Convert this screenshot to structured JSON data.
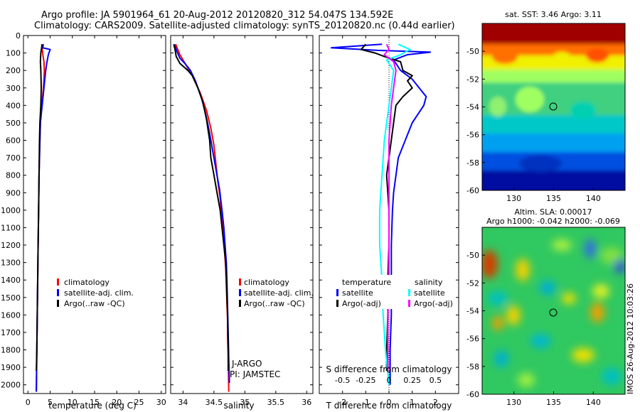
{
  "header": {
    "line1": "Argo profile: JA 5901964_61 20-Aug-2012 20120820_312 54.047S 134.592E",
    "line2": "Climatology: CARS2009. Satellite-adjusted climatology: synTS_20120820.nc (0.44d earlier)"
  },
  "timestamp": "IMOS 26-Aug-2012 10:03:26",
  "colors": {
    "climatology": "#ff0000",
    "satellite": "#0000ff",
    "argo": "#000000",
    "cyan": "#00ffff",
    "magenta": "#ff00ff"
  },
  "chart_data": [
    {
      "type": "line",
      "id": "temperature",
      "xlabel": "temperature (deg C)",
      "xlim": [
        -1,
        31
      ],
      "xticks": [
        0,
        5,
        10,
        15,
        20,
        25,
        30
      ],
      "ylim": [
        2050,
        0
      ],
      "yticks": [
        0,
        100,
        200,
        300,
        400,
        500,
        600,
        700,
        800,
        900,
        1000,
        1100,
        1200,
        1300,
        1400,
        1500,
        1600,
        1700,
        1800,
        1900,
        2000
      ],
      "legend": [
        "climatology",
        "satellite-adj. clim.",
        "Argo(..raw -QC)"
      ],
      "series": [
        {
          "name": "climatology",
          "color": "#ff0000",
          "points": [
            [
              3.1,
              50
            ],
            [
              3.3,
              100
            ],
            [
              3.6,
              150
            ],
            [
              3.7,
              200
            ],
            [
              3.5,
              300
            ],
            [
              3.1,
              400
            ],
            [
              2.8,
              500
            ],
            [
              2.7,
              600
            ],
            [
              2.5,
              800
            ],
            [
              2.4,
              1000
            ],
            [
              2.3,
              1200
            ],
            [
              2.2,
              1400
            ],
            [
              2.1,
              1600
            ],
            [
              2.0,
              1800
            ],
            [
              1.9,
              2040
            ]
          ]
        },
        {
          "name": "satellite-adj. clim.",
          "color": "#0000ff",
          "points": [
            [
              3.5,
              50
            ],
            [
              3.3,
              70
            ],
            [
              5.0,
              80
            ],
            [
              4.6,
              110
            ],
            [
              4.3,
              150
            ],
            [
              4.0,
              200
            ],
            [
              3.6,
              300
            ],
            [
              3.2,
              400
            ],
            [
              2.8,
              500
            ],
            [
              2.7,
              600
            ],
            [
              2.5,
              800
            ],
            [
              2.4,
              1000
            ],
            [
              2.3,
              1200
            ],
            [
              2.2,
              1400
            ],
            [
              2.1,
              1600
            ],
            [
              2.0,
              1800
            ],
            [
              1.9,
              2040
            ]
          ]
        },
        {
          "name": "Argo(..raw -QC)",
          "color": "#000000",
          "points": [
            [
              3.2,
              50
            ],
            [
              2.9,
              100
            ],
            [
              2.8,
              150
            ],
            [
              2.9,
              200
            ],
            [
              3.0,
              300
            ],
            [
              2.9,
              400
            ],
            [
              2.7,
              500
            ],
            [
              2.6,
              600
            ],
            [
              2.5,
              800
            ],
            [
              2.4,
              1000
            ],
            [
              2.3,
              1200
            ],
            [
              2.2,
              1400
            ],
            [
              2.1,
              1600
            ],
            [
              2.0,
              1800
            ],
            [
              1.9,
              1920
            ]
          ]
        }
      ]
    },
    {
      "type": "line",
      "id": "salinity",
      "xlabel": "salinity",
      "xlim": [
        33.8,
        36.1
      ],
      "xticks": [
        34,
        34.5,
        35,
        35.5,
        36
      ],
      "ylim": [
        2050,
        0
      ],
      "legend": [
        "climatology",
        "satellite-adj. clim.",
        "Argo(..raw -QC)"
      ],
      "annotations": [
        "J-ARGO",
        "PI: JAMSTEC"
      ],
      "series": [
        {
          "name": "climatology",
          "color": "#ff0000",
          "points": [
            [
              33.88,
              50
            ],
            [
              33.95,
              110
            ],
            [
              34.05,
              170
            ],
            [
              34.15,
              230
            ],
            [
              34.28,
              330
            ],
            [
              34.38,
              430
            ],
            [
              34.45,
              530
            ],
            [
              34.5,
              630
            ],
            [
              34.53,
              730
            ],
            [
              34.56,
              830
            ],
            [
              34.6,
              930
            ],
            [
              34.62,
              1030
            ],
            [
              34.65,
              1130
            ],
            [
              34.67,
              1230
            ],
            [
              34.69,
              1330
            ],
            [
              34.7,
              1430
            ],
            [
              34.71,
              1530
            ],
            [
              34.72,
              1630
            ],
            [
              34.72,
              1730
            ],
            [
              34.73,
              1830
            ],
            [
              34.74,
              2040
            ]
          ]
        },
        {
          "name": "satellite-adj. clim.",
          "color": "#0000ff",
          "points": [
            [
              33.86,
              50
            ],
            [
              33.9,
              90
            ],
            [
              33.95,
              130
            ],
            [
              34.03,
              160
            ],
            [
              34.12,
              200
            ],
            [
              34.2,
              260
            ],
            [
              34.3,
              360
            ],
            [
              34.36,
              440
            ],
            [
              34.42,
              540
            ],
            [
              34.48,
              660
            ],
            [
              34.54,
              780
            ],
            [
              34.59,
              880
            ],
            [
              34.63,
              1000
            ],
            [
              34.66,
              1100
            ],
            [
              34.68,
              1200
            ],
            [
              34.7,
              1300
            ],
            [
              34.71,
              1400
            ],
            [
              34.72,
              1550
            ],
            [
              34.73,
              1700
            ],
            [
              34.74,
              1850
            ],
            [
              34.75,
              1990
            ]
          ]
        },
        {
          "name": "Argo(..raw -QC)",
          "color": "#000000",
          "points": [
            [
              33.85,
              50
            ],
            [
              33.87,
              80
            ],
            [
              33.89,
              120
            ],
            [
              33.95,
              160
            ],
            [
              34.08,
              200
            ],
            [
              34.15,
              230
            ],
            [
              34.24,
              300
            ],
            [
              34.32,
              380
            ],
            [
              34.38,
              480
            ],
            [
              34.43,
              600
            ],
            [
              34.45,
              700
            ],
            [
              34.5,
              800
            ],
            [
              34.55,
              900
            ],
            [
              34.6,
              1000
            ],
            [
              34.63,
              1100
            ],
            [
              34.66,
              1200
            ],
            [
              34.69,
              1300
            ],
            [
              34.7,
              1400
            ],
            [
              34.71,
              1500
            ],
            [
              34.72,
              1600
            ],
            [
              34.73,
              1750
            ],
            [
              34.73,
              1920
            ]
          ]
        }
      ]
    },
    {
      "type": "line",
      "id": "difference",
      "xlabel": "T difference from climatology",
      "xlabel2": "S difference from climatology",
      "xlim": [
        -3,
        3
      ],
      "xticks": [
        -2,
        -1,
        0,
        1,
        2
      ],
      "xticklabels": [
        "-2",
        "-1",
        "0",
        "1",
        "2"
      ],
      "xticks2": [
        -2,
        -1,
        0,
        1,
        2
      ],
      "xticklabels2": [
        "-0.5",
        "-0.25",
        "0",
        "0.25",
        "0.5"
      ],
      "ylim": [
        2050,
        0
      ],
      "legend": {
        "temperature_heading": "temperature",
        "salinity_heading": "salinity",
        "items": [
          "satellite",
          "Argo(-adj)",
          "satellite",
          "Argo(-adj)"
        ]
      },
      "series": [
        {
          "name": "T satellite",
          "color": "#0000ff",
          "points": [
            [
              -0.3,
              50
            ],
            [
              -2.5,
              70
            ],
            [
              -0.5,
              85
            ],
            [
              1.8,
              95
            ],
            [
              0.8,
              110
            ],
            [
              0.2,
              140
            ],
            [
              0.5,
              200
            ],
            [
              1.0,
              250
            ],
            [
              1.6,
              350
            ],
            [
              1.5,
              400
            ],
            [
              1.0,
              500
            ],
            [
              0.7,
              600
            ],
            [
              0.4,
              700
            ],
            [
              0.3,
              800
            ],
            [
              0.2,
              900
            ],
            [
              0.15,
              1000
            ],
            [
              0.1,
              1200
            ],
            [
              0.1,
              1400
            ],
            [
              0.1,
              1600
            ],
            [
              0.05,
              1800
            ],
            [
              0.05,
              2000
            ]
          ]
        },
        {
          "name": "T Argo(-adj)",
          "color": "#000000",
          "points": [
            [
              -1.0,
              50
            ],
            [
              -1.2,
              80
            ],
            [
              -0.6,
              100
            ],
            [
              -0.2,
              120
            ],
            [
              0.5,
              150
            ],
            [
              0.6,
              200
            ],
            [
              1.0,
              230
            ],
            [
              0.8,
              260
            ],
            [
              1.0,
              300
            ],
            [
              0.6,
              350
            ],
            [
              0.3,
              400
            ],
            [
              0.2,
              500
            ],
            [
              0.0,
              700
            ],
            [
              -0.1,
              800
            ],
            [
              -0.05,
              900
            ],
            [
              0.0,
              1000
            ],
            [
              0.0,
              1200
            ],
            [
              -0.05,
              1400
            ],
            [
              -0.05,
              1600
            ],
            [
              -0.1,
              1800
            ],
            [
              -0.1,
              1920
            ]
          ]
        },
        {
          "name": "S satellite",
          "color": "#00ffff",
          "points": [
            [
              0.4,
              50
            ],
            [
              0.9,
              80
            ],
            [
              0.5,
              110
            ],
            [
              -0.1,
              140
            ],
            [
              0.2,
              200
            ],
            [
              0.1,
              300
            ],
            [
              0.0,
              400
            ],
            [
              -0.2,
              600
            ],
            [
              -0.3,
              800
            ],
            [
              -0.4,
              1000
            ],
            [
              -0.4,
              1200
            ],
            [
              -0.3,
              1400
            ],
            [
              -0.25,
              1600
            ],
            [
              -0.15,
              1800
            ],
            [
              0.0,
              2000
            ]
          ]
        },
        {
          "name": "S Argo(-adj)",
          "color": "#ff00ff",
          "points": [
            [
              -0.1,
              50
            ],
            [
              0.0,
              80
            ],
            [
              -0.2,
              110
            ],
            [
              0.2,
              150
            ],
            [
              0.3,
              200
            ],
            [
              0.2,
              300
            ],
            [
              0.1,
              400
            ],
            [
              0.0,
              600
            ],
            [
              0.0,
              800
            ],
            [
              0.0,
              1000
            ],
            [
              0.0,
              1200
            ],
            [
              0.0,
              1400
            ],
            [
              -0.05,
              1600
            ],
            [
              -0.05,
              1800
            ],
            [
              -0.05,
              1920
            ]
          ]
        }
      ]
    },
    {
      "type": "heatmap",
      "id": "sst",
      "title": "sat. SST: 3.46 Argo: 3.11",
      "xlim": [
        126,
        144
      ],
      "ylim": [
        -60,
        -48
      ],
      "xticks": [
        130,
        135,
        140
      ],
      "yticks": [
        -60,
        -58,
        -56,
        -54,
        -52,
        -50
      ],
      "marker": {
        "lon": 134.59,
        "lat": -54.05
      }
    },
    {
      "type": "heatmap",
      "id": "sla",
      "title": "Altim. SLA: 0.00017",
      "title2": "Argo h1000: -0.042 h2000: -0.069",
      "xlim": [
        126,
        144
      ],
      "ylim": [
        -60,
        -48
      ],
      "xticks": [
        130,
        135,
        140
      ],
      "yticks": [
        -60,
        -58,
        -56,
        -54,
        -52,
        -50
      ],
      "marker": {
        "lon": 134.59,
        "lat": -54.05
      }
    }
  ]
}
